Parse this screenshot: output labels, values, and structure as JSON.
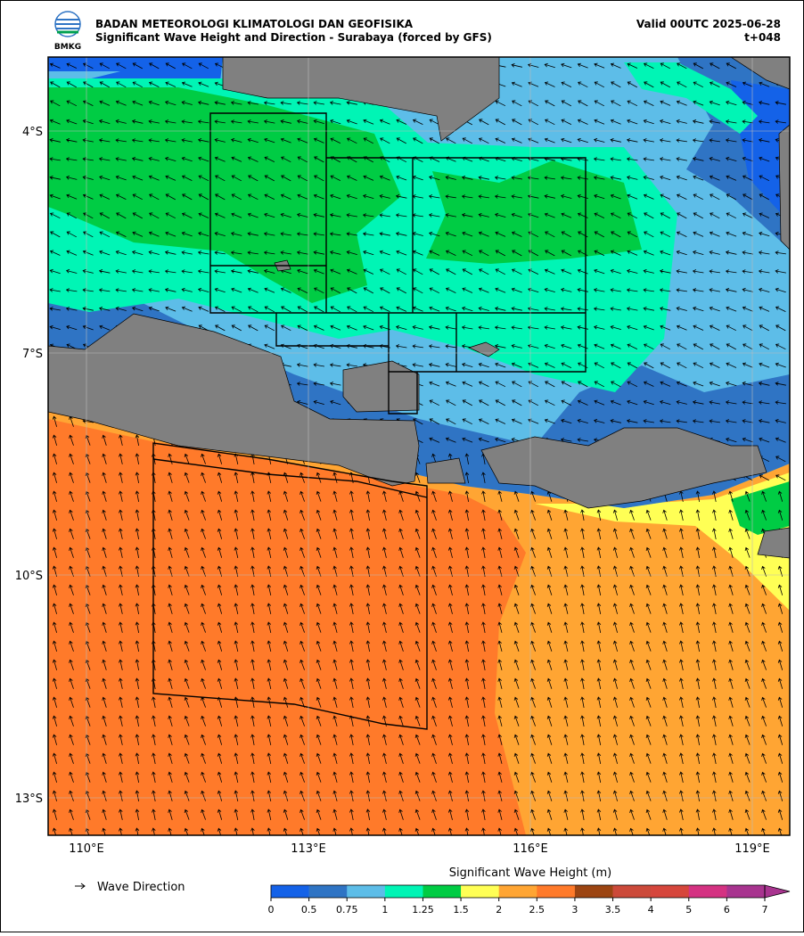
{
  "header": {
    "logo_text": "BMKG",
    "title": "BADAN METEOROLOGI KLIMATOLOGI DAN GEOFISIKA",
    "subtitle": "Significant Wave Height and Direction - Surabaya (forced by GFS)",
    "valid": "Valid 00UTC 2025-06-28",
    "lead": "t+048"
  },
  "map": {
    "lon_labels": [
      "110°E",
      "113°E",
      "116°E",
      "119°E"
    ],
    "lat_labels": [
      "4°S",
      "7°S",
      "10°S",
      "13°S"
    ]
  },
  "legend": {
    "arrow_label": "Wave Direction"
  },
  "colorbar": {
    "label": "Significant Wave Height (m)",
    "ticks": [
      0,
      0.5,
      0.75,
      1,
      1.25,
      1.5,
      2,
      2.5,
      3,
      3.5,
      4,
      5,
      6,
      7
    ],
    "colors": [
      "#1462e8",
      "#2f74c4",
      "#5dbde8",
      "#00f5b5",
      "#00cc44",
      "#ffff55",
      "#ffa533",
      "#ff7a2a",
      "#9c4512",
      "#cc4a3a",
      "#d6463c",
      "#d43282",
      "#a8348f"
    ]
  }
}
